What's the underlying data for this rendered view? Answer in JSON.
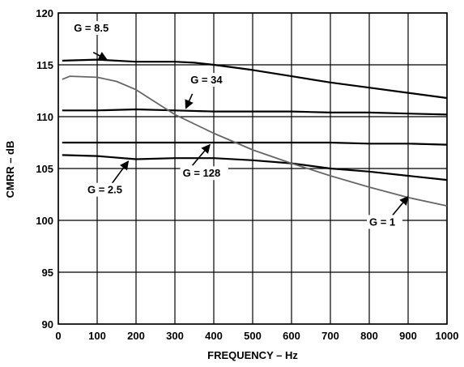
{
  "chart_data": {
    "type": "line",
    "title": "",
    "xlabel": "FREQUENCY – Hz",
    "ylabel": "CMRR – dB",
    "xlim": [
      0,
      1000
    ],
    "ylim": [
      90,
      120
    ],
    "x_ticks": [
      "0",
      "100",
      "200",
      "300",
      "400",
      "500",
      "600",
      "700",
      "800",
      "900",
      "1000"
    ],
    "y_ticks": [
      "90",
      "95",
      "100",
      "105",
      "110",
      "115",
      "120"
    ],
    "grid": true,
    "series": [
      {
        "name": "G = 8.5",
        "color": "#000000",
        "x": [
          10,
          100,
          200,
          300,
          350,
          400,
          500,
          600,
          700,
          800,
          900,
          1000
        ],
        "y": [
          115.4,
          115.5,
          115.3,
          115.3,
          115.2,
          115.0,
          114.5,
          113.9,
          113.3,
          112.8,
          112.3,
          111.8
        ]
      },
      {
        "name": "G = 34",
        "color": "#000000",
        "x": [
          10,
          100,
          200,
          300,
          400,
          500,
          600,
          700,
          800,
          900,
          1000
        ],
        "y": [
          110.6,
          110.6,
          110.7,
          110.6,
          110.5,
          110.5,
          110.5,
          110.4,
          110.4,
          110.3,
          110.2
        ]
      },
      {
        "name": "G = 128",
        "color": "#000000",
        "x": [
          10,
          100,
          200,
          300,
          400,
          500,
          600,
          700,
          800,
          900,
          1000
        ],
        "y": [
          107.5,
          107.5,
          107.5,
          107.5,
          107.5,
          107.5,
          107.5,
          107.5,
          107.4,
          107.4,
          107.3
        ]
      },
      {
        "name": "G = 2.5",
        "color": "#000000",
        "x": [
          10,
          100,
          200,
          300,
          400,
          500,
          600,
          700,
          800,
          900,
          1000
        ],
        "y": [
          106.3,
          106.2,
          105.9,
          106.0,
          106.0,
          105.8,
          105.5,
          105.0,
          104.7,
          104.3,
          103.9
        ]
      },
      {
        "name": "G = 1",
        "color": "#666666",
        "x": [
          10,
          30,
          100,
          150,
          200,
          250,
          300,
          350,
          400,
          500,
          600,
          700,
          800,
          900,
          1000
        ],
        "y": [
          113.6,
          113.9,
          113.8,
          113.4,
          112.6,
          111.4,
          110.2,
          109.3,
          108.4,
          106.8,
          105.5,
          104.3,
          103.2,
          102.2,
          101.4
        ]
      }
    ],
    "annotations": [
      {
        "text": "G = 8.5",
        "label_at": [
          40,
          118.2
        ],
        "arrow_from": [
          90,
          116.2
        ],
        "arrow_to": [
          125,
          115.5
        ]
      },
      {
        "text": "G = 34",
        "label_at": [
          340,
          113.2
        ],
        "arrow_from": [
          345,
          112.2
        ],
        "arrow_to": [
          328,
          110.8
        ]
      },
      {
        "text": "G = 128",
        "label_at": [
          320,
          104.2
        ],
        "arrow_from": [
          345,
          105.3
        ],
        "arrow_to": [
          390,
          107.3
        ]
      },
      {
        "text": "G = 2.5",
        "label_at": [
          75,
          102.6
        ],
        "arrow_from": [
          135,
          103.4
        ],
        "arrow_to": [
          180,
          105.7
        ]
      },
      {
        "text": "G = 1",
        "label_at": [
          800,
          99.5
        ],
        "arrow_from": [
          860,
          100.5
        ],
        "arrow_to": [
          900,
          102.3
        ]
      }
    ]
  }
}
